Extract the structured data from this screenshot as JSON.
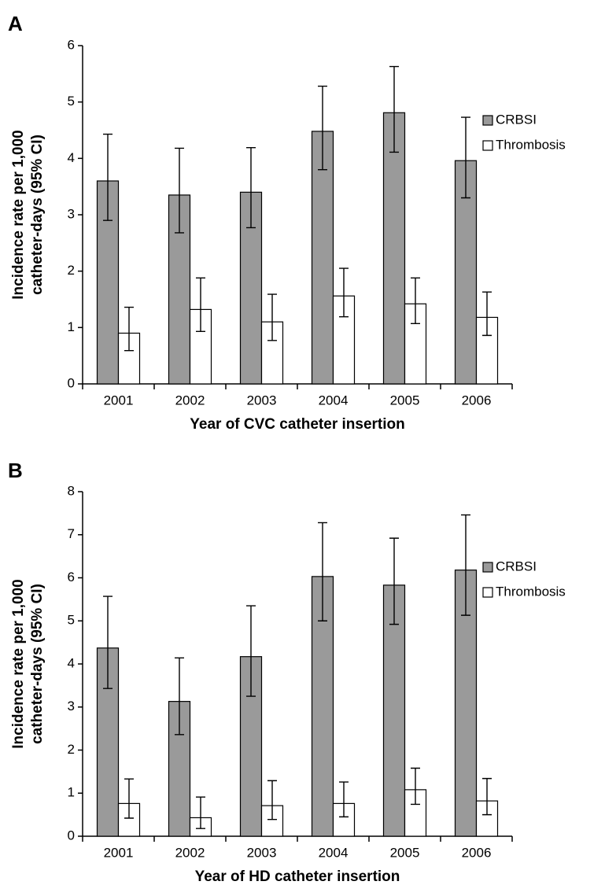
{
  "chart_data": [
    {
      "type": "bar",
      "panel_label": "A",
      "xlabel": "Year of CVC catheter insertion",
      "ylabel": [
        "Incidence rate per 1,000",
        "catheter-days (95% CI)"
      ],
      "categories": [
        "2001",
        "2002",
        "2003",
        "2004",
        "2005",
        "2006"
      ],
      "ylim": [
        0,
        6
      ],
      "yticks": [
        0,
        1,
        2,
        3,
        4,
        5,
        6
      ],
      "series": [
        {
          "name": "CRBSI",
          "color": "#9a9a9a",
          "values": [
            3.6,
            3.35,
            3.4,
            4.48,
            4.81,
            3.96
          ],
          "ci_lower": [
            2.9,
            2.68,
            2.77,
            3.8,
            4.11,
            3.3
          ],
          "ci_upper": [
            4.43,
            4.18,
            4.19,
            5.28,
            5.63,
            4.73
          ]
        },
        {
          "name": "Thrombosis",
          "color": "#ffffff",
          "values": [
            0.9,
            1.32,
            1.1,
            1.56,
            1.42,
            1.18
          ],
          "ci_lower": [
            0.59,
            0.93,
            0.77,
            1.19,
            1.07,
            0.86
          ],
          "ci_upper": [
            1.36,
            1.88,
            1.59,
            2.05,
            1.88,
            1.63
          ]
        }
      ]
    },
    {
      "type": "bar",
      "panel_label": "B",
      "xlabel": "Year of HD catheter insertion",
      "ylabel": [
        "Incidence rate per 1,000",
        "catheter-days (95% CI)"
      ],
      "categories": [
        "2001",
        "2002",
        "2003",
        "2004",
        "2005",
        "2006"
      ],
      "ylim": [
        0,
        8
      ],
      "yticks": [
        0,
        1,
        2,
        3,
        4,
        5,
        6,
        7,
        8
      ],
      "series": [
        {
          "name": "CRBSI",
          "color": "#9a9a9a",
          "values": [
            4.37,
            3.13,
            4.17,
            6.03,
            5.83,
            6.18
          ],
          "ci_lower": [
            3.43,
            2.36,
            3.25,
            5.0,
            4.92,
            5.13
          ],
          "ci_upper": [
            5.57,
            4.14,
            5.35,
            7.28,
            6.92,
            7.46
          ]
        },
        {
          "name": "Thrombosis",
          "color": "#ffffff",
          "values": [
            0.76,
            0.43,
            0.71,
            0.76,
            1.08,
            0.82
          ],
          "ci_lower": [
            0.42,
            0.18,
            0.39,
            0.45,
            0.74,
            0.5
          ],
          "ci_upper": [
            1.33,
            0.91,
            1.29,
            1.26,
            1.58,
            1.34
          ]
        }
      ]
    }
  ]
}
